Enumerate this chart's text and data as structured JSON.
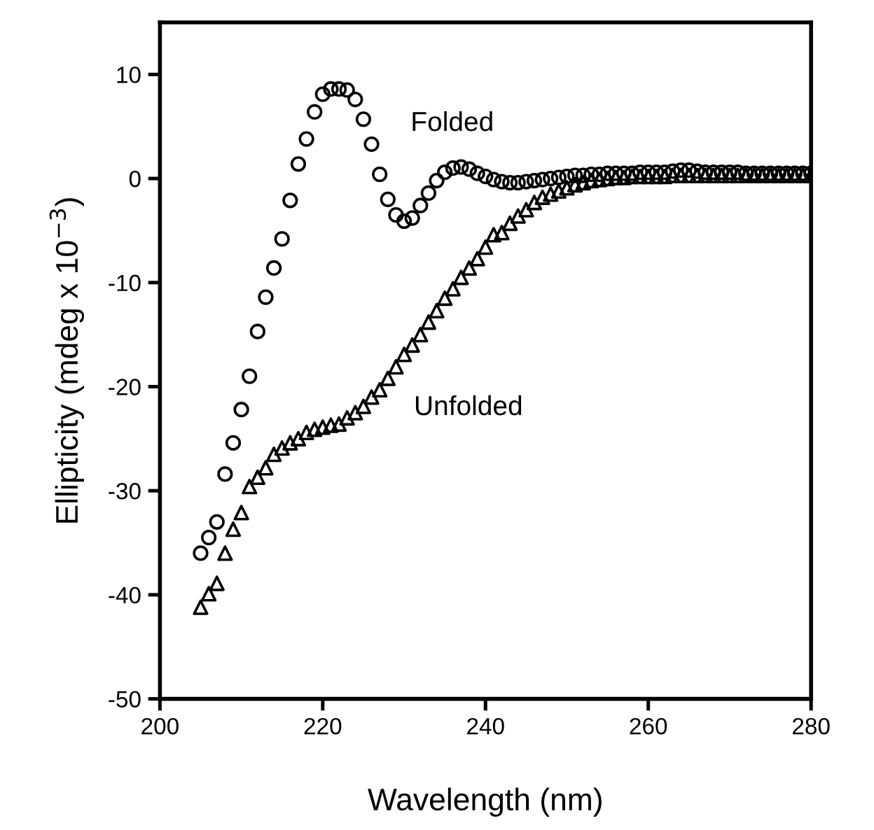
{
  "chart_data": {
    "type": "scatter",
    "xlabel": "Wavelength (nm)",
    "ylabel": "Ellipticity (mdeg x 10$^{−3}$)",
    "xlim": [
      200,
      280
    ],
    "ylim": [
      -50,
      15
    ],
    "xticks": [
      200,
      220,
      240,
      260,
      280
    ],
    "yticks": [
      -50,
      -40,
      -30,
      -20,
      -10,
      0,
      10
    ],
    "grid": false,
    "legend": false,
    "x": [
      205,
      206,
      207,
      208,
      209,
      210,
      211,
      212,
      213,
      214,
      215,
      216,
      217,
      218,
      219,
      220,
      221,
      222,
      223,
      224,
      225,
      226,
      227,
      228,
      229,
      230,
      231,
      232,
      233,
      234,
      235,
      236,
      237,
      238,
      239,
      240,
      241,
      242,
      243,
      244,
      245,
      246,
      247,
      248,
      249,
      250,
      251,
      252,
      253,
      254,
      255,
      256,
      257,
      258,
      259,
      260,
      261,
      262,
      263,
      264,
      265,
      266,
      267,
      268,
      269,
      270,
      271,
      272,
      273,
      274,
      275,
      276,
      277,
      278,
      279,
      280
    ],
    "series": [
      {
        "color": "#000000",
        "marker": "circle",
        "values": [
          -36,
          -34.5,
          -33,
          -28.4,
          -25.4,
          -22.2,
          -19,
          -14.7,
          -11.4,
          -8.6,
          -5.8,
          -2.1,
          1.4,
          3.8,
          6.4,
          8.1,
          8.6,
          8.6,
          8.5,
          7.6,
          5.7,
          3.3,
          0.4,
          -2.0,
          -3.5,
          -4.1,
          -3.8,
          -2.6,
          -1.4,
          -0.2,
          0.6,
          1.0,
          1.1,
          0.9,
          0.5,
          0.2,
          -0.1,
          -0.3,
          -0.4,
          -0.4,
          -0.3,
          -0.2,
          -0.1,
          0,
          0.1,
          0.2,
          0.3,
          0.3,
          0.4,
          0.4,
          0.5,
          0.5,
          0.5,
          0.5,
          0.6,
          0.6,
          0.6,
          0.6,
          0.7,
          0.8,
          0.8,
          0.7,
          0.6,
          0.6,
          0.6,
          0.6,
          0.6,
          0.5,
          0.5,
          0.5,
          0.5,
          0.5,
          0.5,
          0.5,
          0.5,
          0.5
        ]
      },
      {
        "color": "#000000",
        "marker": "triangle",
        "values": [
          -41.2,
          -39.9,
          -38.9,
          -36,
          -33.7,
          -32.1,
          -29.6,
          -28.7,
          -27.8,
          -26.5,
          -25.9,
          -25.4,
          -25,
          -24.4,
          -24.1,
          -23.9,
          -23.7,
          -23.6,
          -23,
          -22.5,
          -21.9,
          -21,
          -20.3,
          -19.2,
          -18.1,
          -16.9,
          -16,
          -15,
          -13.8,
          -12.7,
          -11.5,
          -10.6,
          -9.5,
          -8.6,
          -7.7,
          -6.6,
          -5.4,
          -5.2,
          -4.3,
          -3.6,
          -3.0,
          -2.3,
          -1.8,
          -1.5,
          -1.2,
          -0.9,
          -0.6,
          -0.4,
          -0.2,
          -0.1,
          0,
          0.1,
          0.1,
          0.2,
          0.2,
          0.2,
          0.2,
          0.2,
          0.3,
          0.3,
          0.3,
          0.3,
          0.3,
          0.3,
          0.3,
          0.3,
          0.3,
          0.3,
          0.3,
          0.3,
          0.3,
          0.3,
          0.3,
          0.3,
          0.3,
          0.3
        ]
      }
    ],
    "annotations": [
      "Folded",
      "Unfolded"
    ]
  }
}
